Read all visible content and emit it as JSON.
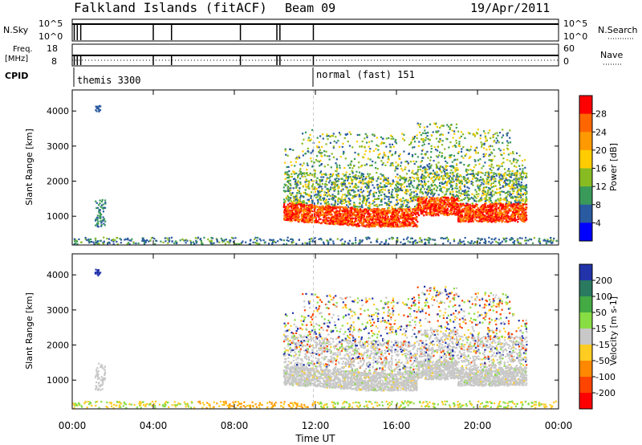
{
  "header": {
    "radar": "Falkland Islands (fitACF)",
    "beam": "Beam 09",
    "date": "19/Apr/2011"
  },
  "status_panels": {
    "nsky_label": "N.Sky",
    "nsky_ticks": [
      "10^5",
      "10^0"
    ],
    "nsearch_label": "N.Search",
    "nsearch_ticks": [
      "10^5",
      "10^0"
    ],
    "freq_label": "Freq.",
    "freq_unit": "[MHz]",
    "freq_ticks": [
      "18",
      "8"
    ],
    "nave_label": "Nave",
    "nave_ticks": [
      "60",
      "0"
    ],
    "cpid_label": "CPID",
    "cpid_segments": [
      {
        "name": "themis 3300",
        "start_hour": 0.0
      },
      {
        "name": "normal (fast) 151",
        "start_hour": 11.9
      }
    ]
  },
  "chart_data": [
    {
      "type": "heatmap",
      "name": "power",
      "ylabel": "Slant Range [km]",
      "yticks": [
        1000,
        2000,
        3000,
        4000
      ],
      "ylim": [
        180,
        4600
      ],
      "xlim": [
        0,
        24
      ],
      "colorbar_label": "Power [dB]",
      "colorbar_ticks": [
        "28",
        "24",
        "20",
        "16",
        "12",
        "8",
        "4"
      ],
      "colorbar_colors": [
        "#ff0000",
        "#ff6600",
        "#ff9900",
        "#ffcc00",
        "#88bb22",
        "#3a9a5a",
        "#2a5aa0",
        "#0000ff"
      ]
    },
    {
      "type": "heatmap",
      "name": "velocity",
      "ylabel": "Slant Range [km]",
      "yticks": [
        1000,
        2000,
        3000,
        4000
      ],
      "ylim": [
        180,
        4600
      ],
      "xlim": [
        0,
        24
      ],
      "colorbar_label": "Velocity [m s-1]",
      "colorbar_ticks": [
        "200",
        "100",
        "50",
        "15",
        "-15",
        "-50",
        "-100",
        "-200"
      ],
      "colorbar_colors": [
        "#2233aa",
        "#2a7a60",
        "#44aa44",
        "#88dd44",
        "#c8c8c8",
        "#ffcc22",
        "#ff8800",
        "#ff4400",
        "#ff0000"
      ]
    }
  ],
  "xaxis": {
    "ticks": [
      "00:00",
      "04:00",
      "08:00",
      "12:00",
      "16:00",
      "20:00",
      "00:00"
    ],
    "tick_hours": [
      0,
      4,
      8,
      12,
      16,
      20,
      24
    ],
    "label": "Time UT"
  }
}
